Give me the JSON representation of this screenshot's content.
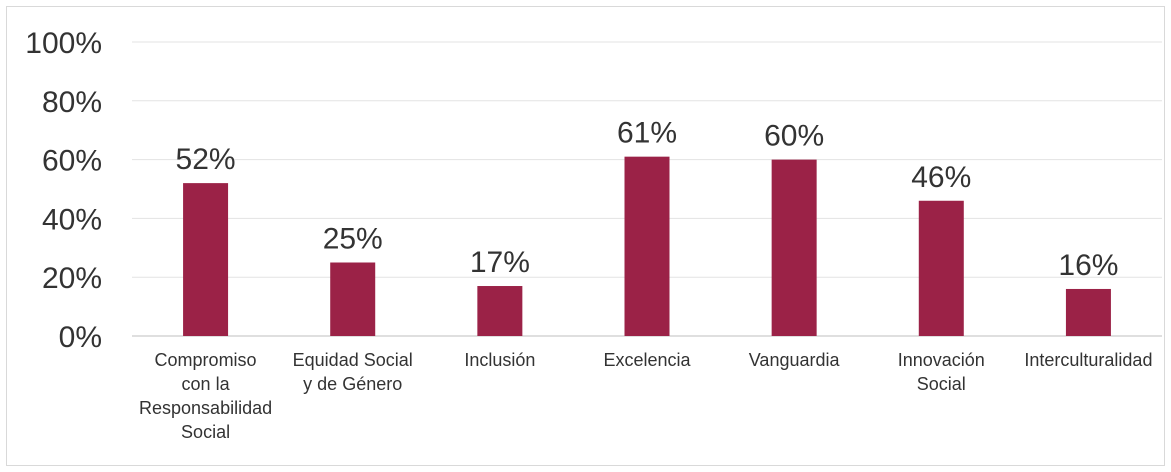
{
  "chart_data": {
    "type": "bar",
    "title": "",
    "xlabel": "",
    "ylabel": "",
    "ylim": [
      0,
      100
    ],
    "y_ticks": [
      "0%",
      "20%",
      "40%",
      "60%",
      "80%",
      "100%"
    ],
    "grid": true,
    "legend": "none",
    "bar_color": "#9b2247",
    "categories": [
      "Compromiso con la Responsabilidad Social",
      "Equidad Social y de Género",
      "Inclusión",
      "Excelencia",
      "Vanguardia",
      "Innovación Social",
      "Interculturalidad"
    ],
    "category_lines": [
      [
        "Compromiso",
        "con la",
        "Responsabilidad",
        "Social"
      ],
      [
        "Equidad Social",
        "y de Género"
      ],
      [
        "Inclusión"
      ],
      [
        "Excelencia"
      ],
      [
        "Vanguardia"
      ],
      [
        "Innovación",
        "Social"
      ],
      [
        "Interculturalidad"
      ]
    ],
    "values": [
      52,
      25,
      17,
      61,
      60,
      46,
      16
    ],
    "data_labels": [
      "52%",
      "25%",
      "17%",
      "61%",
      "60%",
      "46%",
      "16%"
    ]
  }
}
